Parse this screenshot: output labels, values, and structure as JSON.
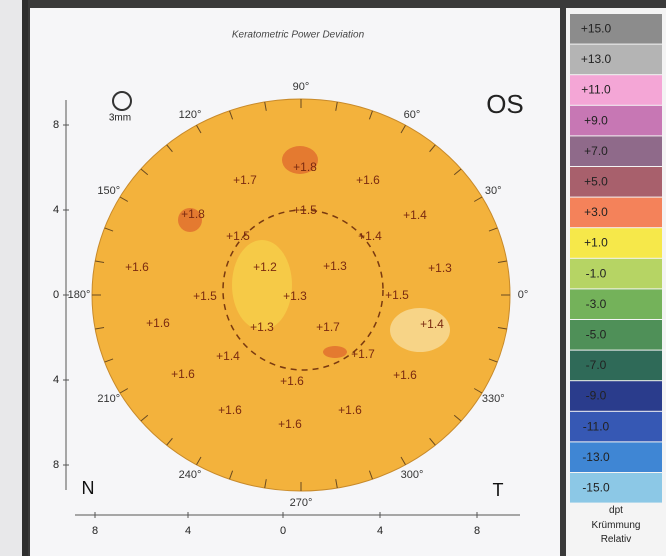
{
  "header": {
    "title": "Keratometric Power Deviation",
    "eye": "OS",
    "scale": "3mm"
  },
  "sides": {
    "nasal": "N",
    "temporal": "T"
  },
  "left_axis": [
    "8",
    "4",
    "0",
    "4",
    "8"
  ],
  "bottom_axis": [
    "8",
    "4",
    "0",
    "4",
    "8"
  ],
  "angles": [
    "90°",
    "60°",
    "30°",
    "0°",
    "330°",
    "300°",
    "270°",
    "240°",
    "210°",
    "180°",
    "150°",
    "120°"
  ],
  "map_values": [
    "+1.8",
    "+1.7",
    "+1.6",
    "+1.8",
    "+1.5",
    "+1.4",
    "+1.5",
    "+1.4",
    "+1.6",
    "+1.2",
    "+1.3",
    "+1.3",
    "+1.5",
    "+1.3",
    "+1.5",
    "+1.6",
    "+1.3",
    "+1.7",
    "+1.4",
    "+1.4",
    "+1.7",
    "+1.6",
    "+1.6",
    "+1.6",
    "+1.6",
    "+1.6",
    "+1.6"
  ],
  "legend": {
    "items": [
      {
        "label": "+15.0",
        "color": "#8c8c8c"
      },
      {
        "label": "+13.0",
        "color": "#b4b4b4"
      },
      {
        "label": "+11.0",
        "color": "#f4a6d6"
      },
      {
        "label": "+9.0",
        "color": "#c777b4"
      },
      {
        "label": "+7.0",
        "color": "#8f6a8a"
      },
      {
        "label": "+5.0",
        "color": "#a8606c"
      },
      {
        "label": "+3.0",
        "color": "#f4825a"
      },
      {
        "label": "+1.0",
        "color": "#f6e84a"
      },
      {
        "label": "-1.0",
        "color": "#b6d464"
      },
      {
        "label": "-3.0",
        "color": "#74b25a"
      },
      {
        "label": "-5.0",
        "color": "#4f9058"
      },
      {
        "label": "-7.0",
        "color": "#2f6a58"
      },
      {
        "label": "-9.0",
        "color": "#2a3c8c"
      },
      {
        "label": "-11.0",
        "color": "#3658b4"
      },
      {
        "label": "-13.0",
        "color": "#3f86d4"
      },
      {
        "label": "-15.0",
        "color": "#8cc8e6"
      }
    ],
    "unit": "dpt",
    "mode": "Krümmung",
    "ref": "Relativ"
  }
}
